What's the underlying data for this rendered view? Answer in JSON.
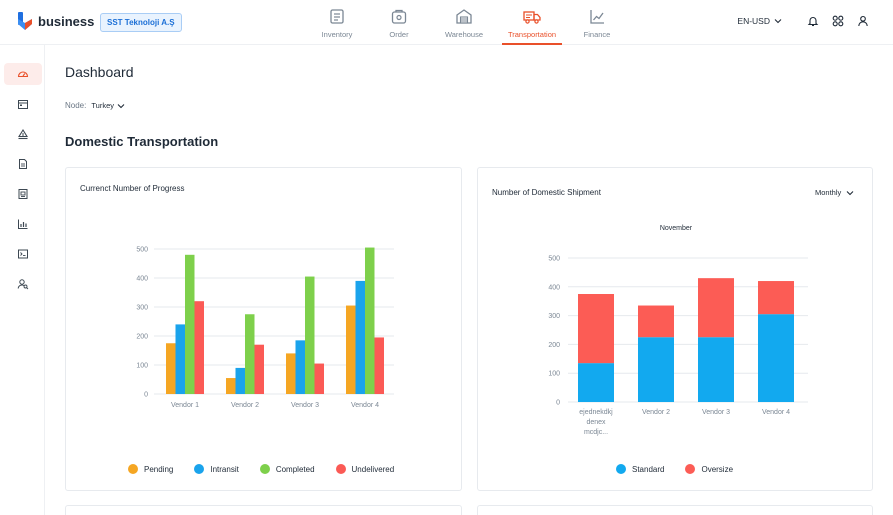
{
  "app": {
    "brand": "business",
    "company": "SST Teknoloji A.Ş"
  },
  "nav": {
    "items": [
      {
        "label": "Inventory",
        "icon": "inventory-icon"
      },
      {
        "label": "Order",
        "icon": "order-icon"
      },
      {
        "label": "Warehouse",
        "icon": "warehouse-icon"
      },
      {
        "label": "Transportation",
        "icon": "truck-icon",
        "active": true
      },
      {
        "label": "Finance",
        "icon": "finance-chart-icon"
      }
    ]
  },
  "header_tools": {
    "currency": "EN-USD"
  },
  "page": {
    "title": "Dashboard",
    "node_label": "Node:",
    "node_value": "Turkey",
    "section_title": "Domestic Transportation"
  },
  "colors": {
    "accent": "#e9502a",
    "pending": "#f5a623",
    "intransit": "#1aa3ec",
    "completed": "#7ed04b",
    "undelivered": "#fb5a55",
    "standard": "#12a9ef",
    "oversize": "#fc5c55"
  },
  "progress_card": {
    "title": "Currenct Number of Progress"
  },
  "shipment_card": {
    "title": "Number of Domestic Shipment",
    "period": "Monthly"
  },
  "chart_data": [
    {
      "type": "bar",
      "title": "Currenct Number of Progress",
      "categories": [
        "Vendor 1",
        "Vendor 2",
        "Vendor 3",
        "Vendor 4"
      ],
      "series": [
        {
          "name": "Pending",
          "values": [
            175,
            55,
            140,
            305
          ]
        },
        {
          "name": "Intransit",
          "values": [
            240,
            90,
            185,
            390
          ]
        },
        {
          "name": "Completed",
          "values": [
            480,
            275,
            405,
            505
          ]
        },
        {
          "name": "Undelivered",
          "values": [
            320,
            170,
            105,
            195
          ]
        }
      ],
      "y_ticks": [
        "0",
        "100",
        "200",
        "300",
        "400",
        "500"
      ],
      "ylim": [
        0,
        500
      ],
      "grid": true,
      "legend": "bottom"
    },
    {
      "type": "bar",
      "stacked": true,
      "title": "Number of Domestic Shipment",
      "subtitle": "November",
      "categories": [
        "ejednekdkj denex mcdjc...",
        "Vendor 2",
        "Vendor 3",
        "Vendor 4"
      ],
      "category_lines": [
        [
          "ejednekdkj",
          "denex",
          "mcdjc..."
        ],
        [
          "Vendor 2"
        ],
        [
          "Vendor 3"
        ],
        [
          "Vendor 4"
        ]
      ],
      "series": [
        {
          "name": "Standard",
          "values": [
            135,
            225,
            225,
            305
          ]
        },
        {
          "name": "Oversize",
          "values": [
            240,
            110,
            205,
            115
          ]
        }
      ],
      "y_ticks": [
        "0",
        "100",
        "200",
        "300",
        "400",
        "500"
      ],
      "ylim": [
        0,
        500
      ],
      "grid": true,
      "legend": "bottom"
    }
  ]
}
